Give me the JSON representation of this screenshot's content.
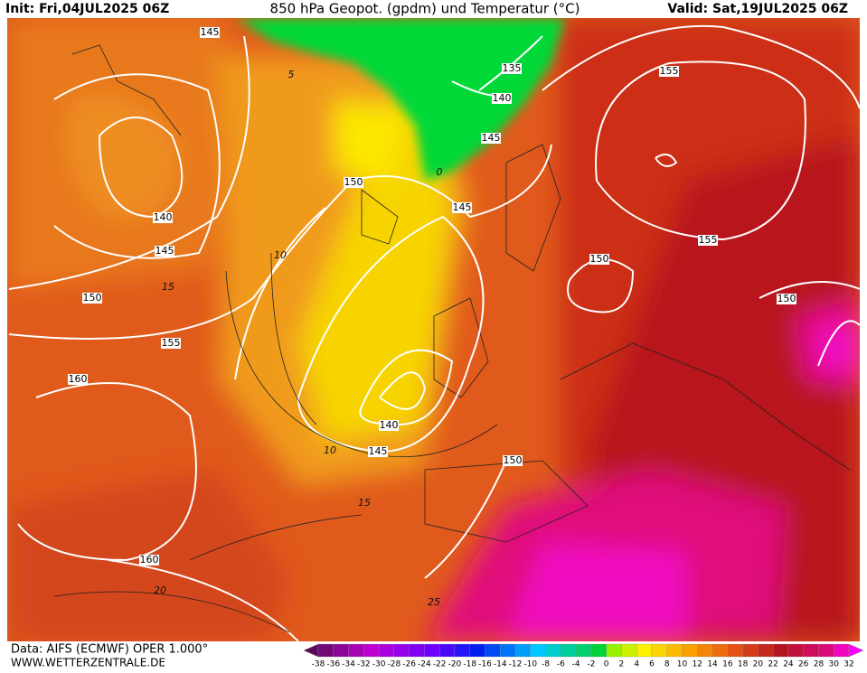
{
  "header": {
    "init": "Init: Fri,04JUL2025 06Z",
    "title": "850 hPa Geopot. (gpdm) und Temperatur (°C)",
    "valid": "Valid: Sat,19JUL2025 06Z"
  },
  "footer": {
    "source": "Data: AIFS (ECMWF) OPER 1.000°",
    "website": "WWW.WETTERZENTRALE.DE"
  },
  "geopotential_labels": [
    "145",
    "135",
    "140",
    "145",
    "155",
    "150",
    "145",
    "140",
    "145",
    "155",
    "150",
    "150",
    "150",
    "155",
    "160",
    "140",
    "145",
    "150",
    "160"
  ],
  "temperature_labels": [
    "5",
    "0",
    "10",
    "15",
    "10",
    "15",
    "20",
    "25"
  ],
  "colorbar": {
    "labels": [
      -38,
      -36,
      -34,
      -32,
      -30,
      -28,
      -26,
      -24,
      -22,
      -20,
      -18,
      -16,
      -14,
      -12,
      -10,
      -8,
      -6,
      -4,
      -2,
      0,
      2,
      4,
      6,
      8,
      10,
      12,
      14,
      16,
      18,
      20,
      22,
      24,
      26,
      28,
      30,
      32
    ]
  }
}
